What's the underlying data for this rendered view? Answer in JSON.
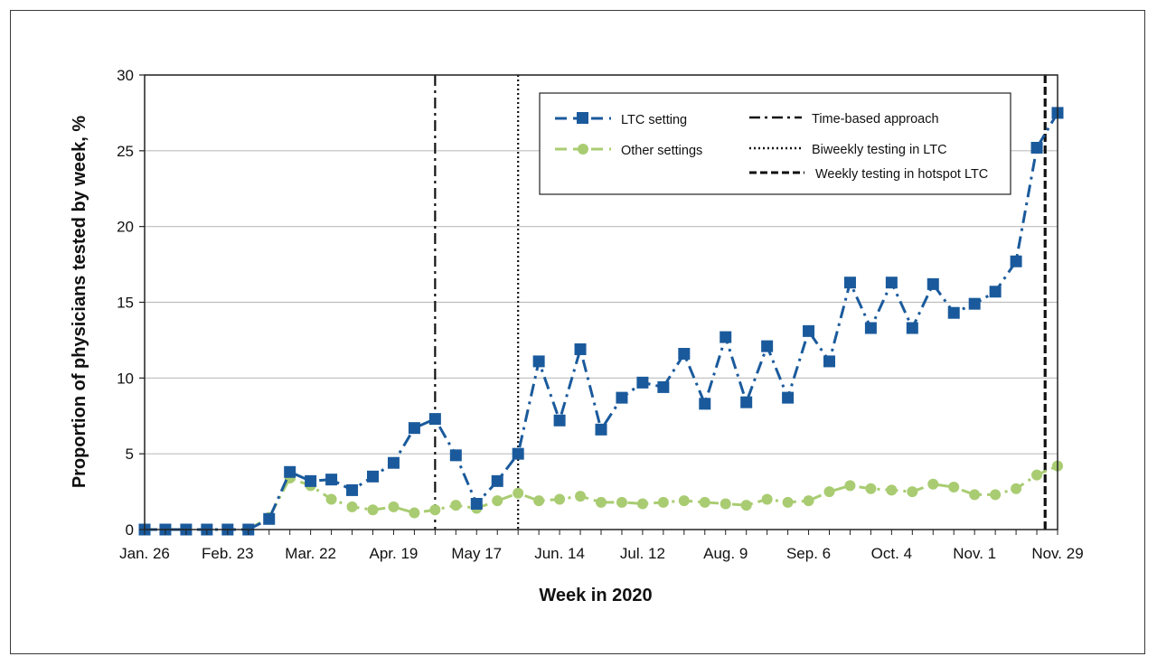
{
  "chart_data": {
    "type": "line",
    "xlabel": "Week in 2020",
    "ylabel": "Proportion of physicians tested by week, %",
    "ylim": [
      0,
      30
    ],
    "yticks": [
      0,
      5,
      10,
      15,
      20,
      25,
      30
    ],
    "x_tick_labels": [
      "Jan. 26",
      "Feb. 23",
      "Mar. 22",
      "Apr. 19",
      "May 17",
      "Jun. 14",
      "Jul. 12",
      "Aug. 9",
      "Sep. 6",
      "Oct. 4",
      "Nov. 1",
      "Nov. 29"
    ],
    "grid": "horizontal",
    "legend_position": "top-right",
    "series": [
      {
        "name": "LTC setting",
        "color": "#1a5a9c",
        "marker": "square",
        "values": [
          0,
          0,
          0,
          0,
          0,
          0,
          0.7,
          3.8,
          3.2,
          3.3,
          2.6,
          3.5,
          4.4,
          6.7,
          7.3,
          4.9,
          1.7,
          3.2,
          5.0,
          11.1,
          7.2,
          11.9,
          6.6,
          8.7,
          9.7,
          9.4,
          11.6,
          8.3,
          12.7,
          8.4,
          12.1,
          8.7,
          13.1,
          11.1,
          16.3,
          13.3,
          16.3,
          13.3,
          16.2,
          14.3,
          14.9,
          15.7,
          17.7,
          25.2,
          27.5
        ]
      },
      {
        "name": "Other settings",
        "color": "#a9cc72",
        "marker": "circle",
        "values": [
          0,
          0,
          0,
          0,
          0,
          0,
          0.8,
          3.4,
          2.9,
          2.0,
          1.5,
          1.3,
          1.5,
          1.1,
          1.3,
          1.6,
          1.4,
          1.9,
          2.4,
          1.9,
          2.0,
          2.2,
          1.8,
          1.8,
          1.7,
          1.8,
          1.9,
          1.8,
          1.7,
          1.6,
          2.0,
          1.8,
          1.9,
          2.5,
          2.9,
          2.7,
          2.6,
          2.5,
          3.0,
          2.8,
          2.3,
          2.3,
          2.7,
          3.6,
          4.2
        ]
      }
    ],
    "reference_lines": [
      {
        "name": "Time-based approach",
        "style": "dashdot",
        "x_index": 14
      },
      {
        "name": "Biweekly testing in LTC",
        "style": "dotted",
        "x_index": 18
      },
      {
        "name": "Weekly testing in hotspot LTC",
        "style": "dashed",
        "x_index": 43.4
      }
    ]
  }
}
